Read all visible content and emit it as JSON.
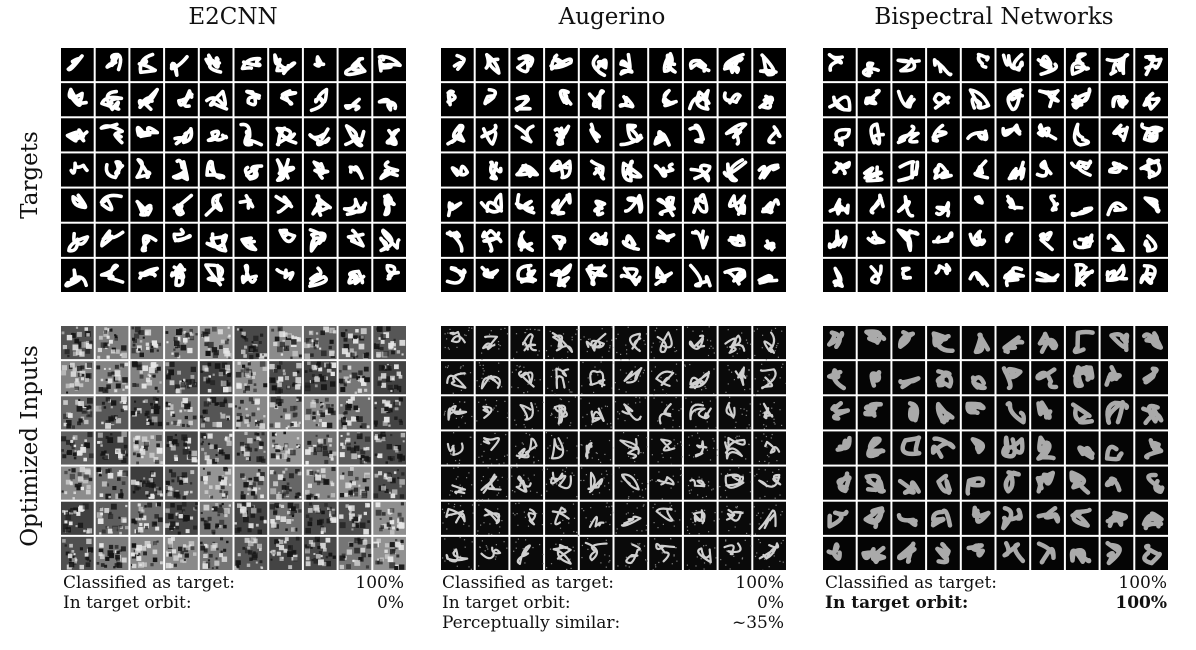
{
  "columns": [
    {
      "title": "E2CNN",
      "captions": [
        {
          "label": "Classified as target:",
          "value": "100%",
          "bold": false
        },
        {
          "label": "In target orbit:",
          "value": "0%",
          "bold": false
        }
      ]
    },
    {
      "title": "Augerino",
      "captions": [
        {
          "label": "Classified as target:",
          "value": "100%",
          "bold": false
        },
        {
          "label": "In target orbit:",
          "value": "0%",
          "bold": false
        },
        {
          "label": "Perceptually similar:",
          "value": "~35%",
          "bold": false
        }
      ]
    },
    {
      "title": "Bispectral Networks",
      "captions": [
        {
          "label": "Classified as target:",
          "value": "100%",
          "bold": false
        },
        {
          "label": "In target orbit:",
          "value": "100%",
          "bold": true
        }
      ]
    }
  ],
  "rows": [
    "Targets",
    "Optimized Inputs"
  ],
  "grid": {
    "rows": 7,
    "cols": 10
  }
}
